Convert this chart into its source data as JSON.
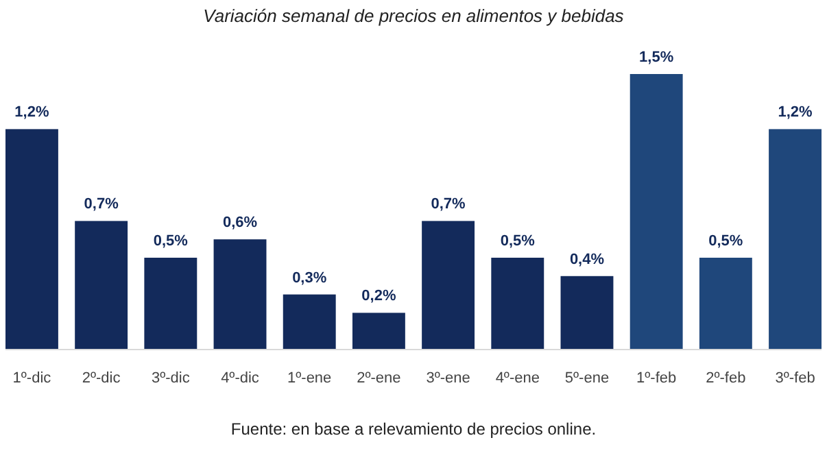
{
  "chart_data": {
    "type": "bar",
    "title": "Variación semanal de precios en alimentos y bebidas",
    "categories": [
      "1º-dic",
      "2º-dic",
      "3º-dic",
      "4º-dic",
      "1º-ene",
      "2º-ene",
      "3º-ene",
      "4º-ene",
      "5º-ene",
      "1º-feb",
      "2º-feb",
      "3º-feb"
    ],
    "values": [
      1.2,
      0.7,
      0.5,
      0.6,
      0.3,
      0.2,
      0.7,
      0.5,
      0.4,
      1.5,
      0.5,
      1.2
    ],
    "colors": [
      "#132a5b",
      "#132a5b",
      "#132a5b",
      "#132a5b",
      "#132a5b",
      "#132a5b",
      "#132a5b",
      "#132a5b",
      "#132a5b",
      "#1f477b",
      "#1f477b",
      "#1f477b"
    ],
    "value_labels": [
      "1,2%",
      "0,7%",
      "0,5%",
      "0,6%",
      "0,3%",
      "0,2%",
      "0,7%",
      "0,5%",
      "0,4%",
      "1,5%",
      "0,5%",
      "1,2%"
    ],
    "tick_labels": "x",
    "annotations": [
      "Fuente: en base a relevamiento de precios online."
    ]
  }
}
